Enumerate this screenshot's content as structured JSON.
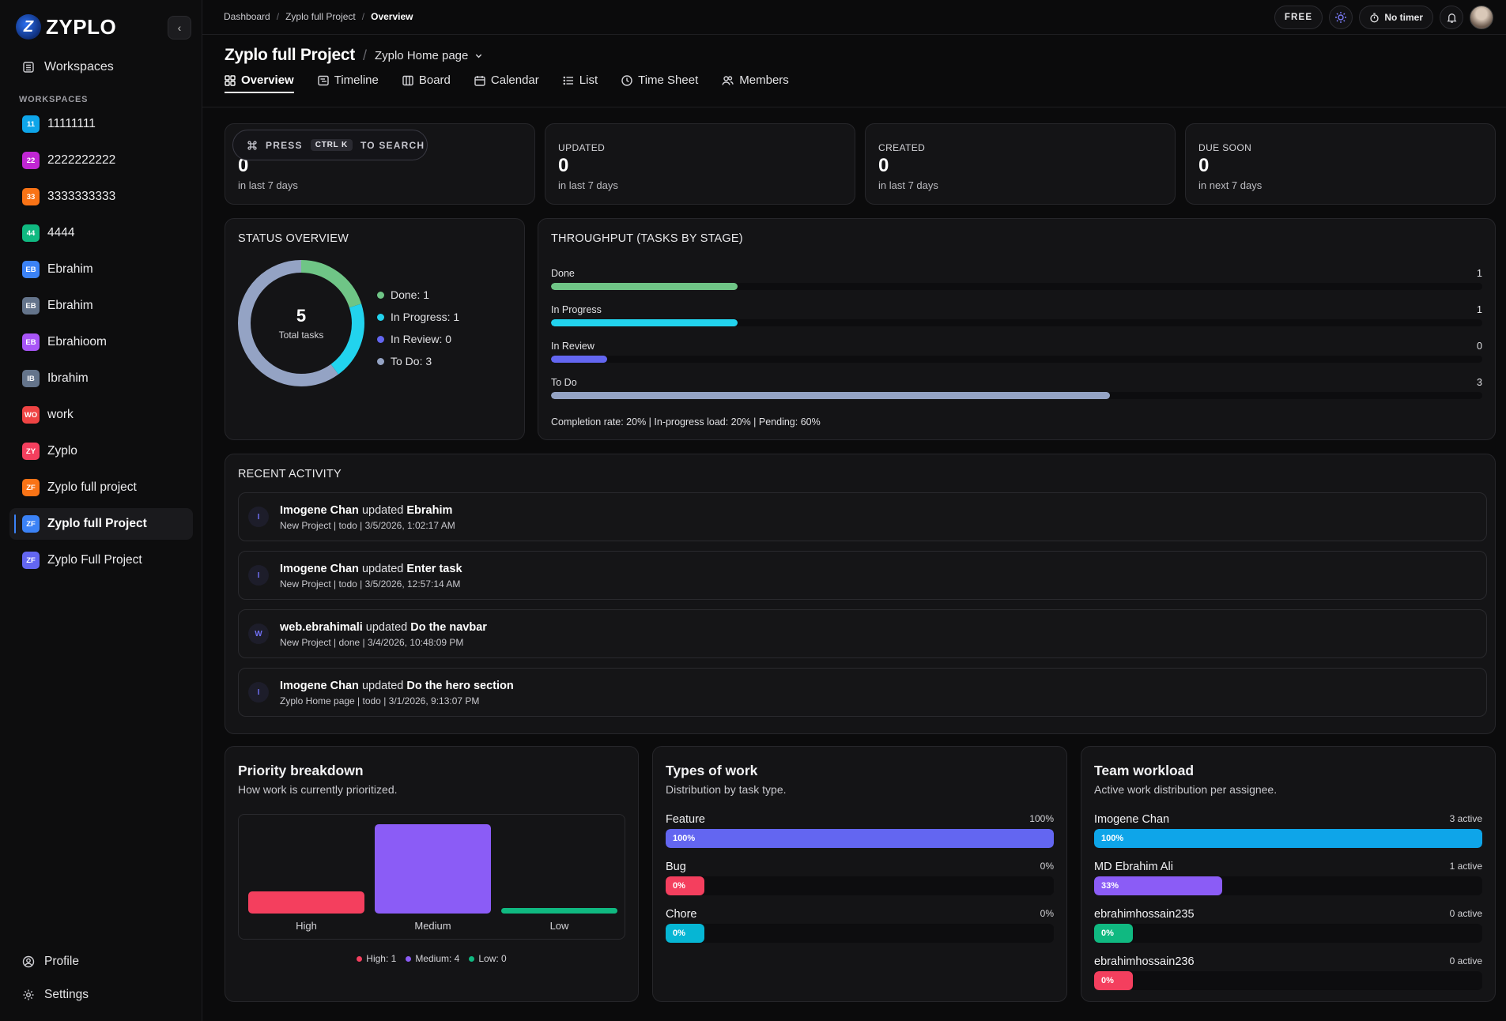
{
  "brand": {
    "name": "ZYPLO",
    "logo_letter": "Z"
  },
  "sidebar": {
    "workspaces_label": "Workspaces",
    "section_label": "WORKSPACES",
    "items": [
      {
        "badge": "11",
        "label": "11111111",
        "color": "#0ea5e9",
        "active": false
      },
      {
        "badge": "22",
        "label": "2222222222",
        "color": "#c026d3",
        "active": false
      },
      {
        "badge": "33",
        "label": "3333333333",
        "color": "#f97316",
        "active": false
      },
      {
        "badge": "44",
        "label": "4444",
        "color": "#10b981",
        "active": false
      },
      {
        "badge": "EB",
        "label": "Ebrahim",
        "color": "#3b82f6",
        "active": false
      },
      {
        "badge": "EB",
        "label": "Ebrahim",
        "color": "#64748b",
        "active": false
      },
      {
        "badge": "EB",
        "label": "Ebrahioom",
        "color": "#a855f7",
        "active": false
      },
      {
        "badge": "IB",
        "label": "Ibrahim",
        "color": "#64748b",
        "active": false
      },
      {
        "badge": "WO",
        "label": "work",
        "color": "#ef4444",
        "active": false
      },
      {
        "badge": "ZY",
        "label": "Zyplo",
        "color": "#f43f5e",
        "active": false
      },
      {
        "badge": "ZF",
        "label": "Zyplo full project",
        "color": "#f97316",
        "active": false
      },
      {
        "badge": "ZF",
        "label": "Zyplo full Project",
        "color": "#3b82f6",
        "active": true
      },
      {
        "badge": "ZF",
        "label": "Zyplo Full Project",
        "color": "#6366f1",
        "active": false
      }
    ],
    "profile_label": "Profile",
    "settings_label": "Settings"
  },
  "topbar": {
    "breadcrumb": [
      "Dashboard",
      "Zyplo full Project",
      "Overview"
    ],
    "plan": "FREE",
    "timer": "No timer"
  },
  "header": {
    "project_title": "Zyplo full Project",
    "subpage": "Zyplo Home page",
    "tabs": [
      "Overview",
      "Timeline",
      "Board",
      "Calendar",
      "List",
      "Time Sheet",
      "Members"
    ]
  },
  "search": {
    "press": "PRESS",
    "shortcut": "CTRL K",
    "suffix": "TO SEARCH"
  },
  "stats": [
    {
      "label": "",
      "value": "0",
      "sub": "in last 7 days"
    },
    {
      "label": "UPDATED",
      "value": "0",
      "sub": "in last 7 days"
    },
    {
      "label": "CREATED",
      "value": "0",
      "sub": "in last 7 days"
    },
    {
      "label": "DUE SOON",
      "value": "0",
      "sub": "in next 7 days"
    }
  ],
  "status_overview": {
    "title": "STATUS OVERVIEW",
    "total": "5",
    "total_label": "Total tasks",
    "legend": [
      {
        "label": "Done: 1",
        "value": 1,
        "color": "#6fc586"
      },
      {
        "label": "In Progress: 1",
        "value": 1,
        "color": "#22d3ee"
      },
      {
        "label": "In Review: 0",
        "value": 0,
        "color": "#6366f1"
      },
      {
        "label": "To Do: 3",
        "value": 3,
        "color": "#94a3c4"
      }
    ]
  },
  "throughput": {
    "title": "THROUGHPUT (TASKS BY STAGE)",
    "stages": [
      {
        "name": "Done",
        "count": "1",
        "fill": 0.2,
        "color": "#6fc586"
      },
      {
        "name": "In Progress",
        "count": "1",
        "fill": 0.2,
        "color": "#22d3ee"
      },
      {
        "name": "In Review",
        "count": "0",
        "fill": 0.06,
        "color": "#6366f1"
      },
      {
        "name": "To Do",
        "count": "3",
        "fill": 0.6,
        "color": "#94a3c4"
      }
    ],
    "note": "Completion rate: 20% | In-progress load: 20% | Pending: 60%"
  },
  "recent_activity": {
    "title": "RECENT ACTIVITY",
    "items": [
      {
        "initial": "I",
        "user": "Imogene Chan",
        "verb": "updated",
        "target": "Ebrahim",
        "meta": "New Project | todo | 3/5/2026, 1:02:17 AM"
      },
      {
        "initial": "I",
        "user": "Imogene Chan",
        "verb": "updated",
        "target": "Enter task",
        "meta": "New Project | todo | 3/5/2026, 12:57:14 AM"
      },
      {
        "initial": "W",
        "user": "web.ebrahimali",
        "verb": "updated",
        "target": "Do the navbar",
        "meta": "New Project | done | 3/4/2026, 10:48:09 PM"
      },
      {
        "initial": "I",
        "user": "Imogene Chan",
        "verb": "updated",
        "target": "Do the hero section",
        "meta": "Zyplo Home page | todo | 3/1/2026, 9:13:07 PM"
      }
    ]
  },
  "priority": {
    "title": "Priority breakdown",
    "subtitle": "How work is currently prioritized.",
    "bars": [
      {
        "label": "High",
        "value": 1,
        "color": "#f43f5e"
      },
      {
        "label": "Medium",
        "value": 4,
        "color": "#8b5cf6"
      },
      {
        "label": "Low",
        "value": 0,
        "color": "#10b981"
      }
    ],
    "legend": [
      "High: 1",
      "Medium: 4",
      "Low: 0"
    ]
  },
  "types_of_work": {
    "title": "Types of work",
    "subtitle": "Distribution by task type.",
    "rows": [
      {
        "name": "Feature",
        "right": "100%",
        "pct_label": "100%",
        "fill": 1.0,
        "color": "#6366f1"
      },
      {
        "name": "Bug",
        "right": "0%",
        "pct_label": "0%",
        "fill": 0.0,
        "color": "#f43f5e"
      },
      {
        "name": "Chore",
        "right": "0%",
        "pct_label": "0%",
        "fill": 0.0,
        "color": "#06b6d4"
      }
    ]
  },
  "team_workload": {
    "title": "Team workload",
    "subtitle": "Active work distribution per assignee.",
    "rows": [
      {
        "name": "Imogene Chan",
        "right": "3 active",
        "pct_label": "100%",
        "fill": 1.0,
        "color": "#0ea5e9"
      },
      {
        "name": "MD Ebrahim Ali",
        "right": "1 active",
        "pct_label": "33%",
        "fill": 0.33,
        "color": "#8b5cf6"
      },
      {
        "name": "ebrahimhossain235",
        "right": "0 active",
        "pct_label": "0%",
        "fill": 0.0,
        "color": "#10b981"
      },
      {
        "name": "ebrahimhossain236",
        "right": "0 active",
        "pct_label": "0%",
        "fill": 0.0,
        "color": "#f43f5e"
      }
    ]
  }
}
